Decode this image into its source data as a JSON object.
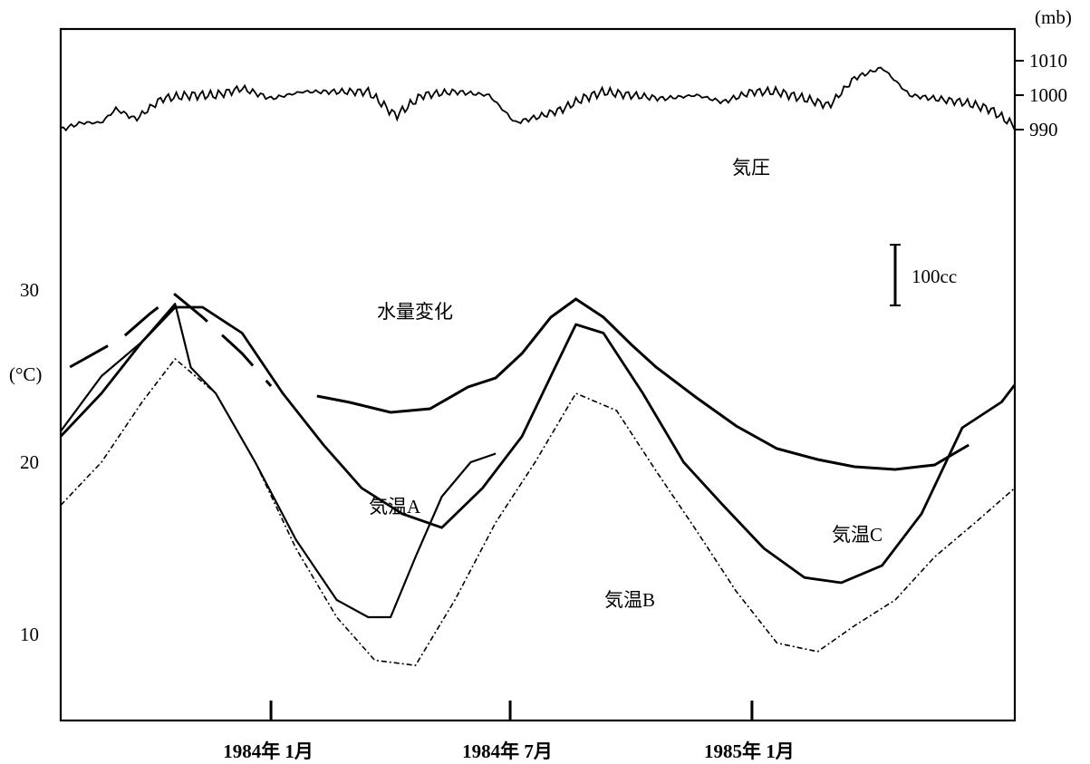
{
  "chart_data": {
    "type": "line",
    "x_axis": {
      "ticks": [
        {
          "date": "1984-01-01",
          "label": "1984年 1月"
        },
        {
          "date": "1984-07-01",
          "label": "1984年 7月"
        },
        {
          "date": "1985-01-01",
          "label": "1985年 1月"
        }
      ],
      "range": [
        "1983-07-25",
        "1985-07-20"
      ]
    },
    "left_axis": {
      "unit_label": "(°C)",
      "ticks": [
        {
          "value": 30,
          "label": "30"
        },
        {
          "value": 20,
          "label": "20"
        },
        {
          "value": 10,
          "label": "10"
        }
      ],
      "range": [
        0,
        30
      ]
    },
    "right_axis": {
      "unit_label": "(mb)",
      "ticks": [
        {
          "value": 1010,
          "label": "1010"
        },
        {
          "value": 1000,
          "label": "1000"
        },
        {
          "value": 990,
          "label": "990"
        }
      ]
    },
    "scale_bar_label": "100cc",
    "series": [
      {
        "name": "気圧",
        "unit": "mb",
        "style": "thin-jagged",
        "x": [
          "1983-07-25",
          "1983-08-10",
          "1983-08-25",
          "1983-09-05",
          "1983-09-20",
          "1983-10-10",
          "1983-11-01",
          "1983-11-20",
          "1983-12-10",
          "1984-01-01",
          "1984-01-25",
          "1984-02-20",
          "1984-03-15",
          "1984-04-05",
          "1984-04-25",
          "1984-05-20",
          "1984-06-15",
          "1984-07-05",
          "1984-07-25",
          "1984-08-10",
          "1984-08-25",
          "1984-09-10",
          "1984-10-01",
          "1984-10-25",
          "1984-11-20",
          "1984-12-10",
          "1985-01-01",
          "1985-01-20",
          "1985-02-10",
          "1985-03-01",
          "1985-03-20",
          "1985-04-10",
          "1985-05-01",
          "1985-05-20",
          "1985-06-10",
          "1985-07-01",
          "1985-07-20"
        ],
        "values": [
          990,
          992,
          992,
          996,
          993,
          999,
          1000,
          1000,
          1002,
          999,
          1001,
          1001,
          1001,
          994,
          1000,
          1001,
          1000,
          992,
          994,
          996,
          999,
          1001,
          1000,
          999,
          1000,
          998,
          1001,
          1001,
          999,
          997,
          1005,
          1008,
          1000,
          999,
          998,
          996,
          991
        ]
      },
      {
        "name": "水量変化",
        "style": "thick-dashed-then-solid",
        "value_note": "relative level (100cc scale bar)",
        "x": [
          "1983-08-01",
          "1983-09-10",
          "1983-10-01",
          "1983-10-20",
          "1983-11-10",
          "1983-12-10",
          "1984-01-01",
          "1984-02-05",
          "1984-03-01",
          "1984-04-01",
          "1984-05-01",
          "1984-05-30",
          "1984-06-20",
          "1984-07-10",
          "1984-08-01",
          "1984-08-20",
          "1984-09-10",
          "1984-10-01",
          "1984-10-20",
          "1984-11-20",
          "1984-12-20",
          "1985-01-20",
          "1985-02-20",
          "1985-03-20",
          "1985-04-20",
          "1985-05-20",
          "1985-06-15"
        ],
        "values": [
          150,
          215,
          268,
          310,
          260,
          180,
          108,
          86,
          72,
          50,
          58,
          106,
          126,
          180,
          260,
          300,
          260,
          200,
          150,
          82,
          20,
          -30,
          -54,
          -70,
          -76,
          -66,
          -22
        ]
      },
      {
        "name": "気温A",
        "unit": "°C",
        "style": "thick-solid",
        "x": [
          "1983-07-25",
          "1983-08-25",
          "1983-09-25",
          "1983-10-20",
          "1983-11-10",
          "1983-12-10",
          "1984-01-10",
          "1984-02-10",
          "1984-03-10",
          "1984-04-10",
          "1984-05-10",
          "1984-06-10",
          "1984-07-10",
          "1984-08-01",
          "1984-08-20",
          "1984-09-10",
          "1984-10-10",
          "1984-11-10",
          "1984-12-10",
          "1985-01-10",
          "1985-02-10",
          "1985-03-10",
          "1985-04-10",
          "1985-05-10",
          "1985-06-10",
          "1985-07-10",
          "1985-07-20"
        ],
        "values": [
          21.5,
          24,
          27,
          29,
          29,
          27.5,
          24,
          21,
          18.5,
          17,
          16.2,
          18.5,
          21.5,
          25,
          28,
          27.5,
          24,
          20,
          17.5,
          15,
          13.3,
          13,
          14,
          17,
          22,
          23.5,
          24.5
        ]
      },
      {
        "name": "気温B",
        "unit": "°C",
        "style": "thin-dash-dot",
        "x": [
          "1983-07-25",
          "1983-08-25",
          "1983-09-25",
          "1983-10-20",
          "1983-11-20",
          "1983-12-20",
          "1984-01-20",
          "1984-02-20",
          "1984-03-20",
          "1984-04-20",
          "1984-05-20",
          "1984-06-20",
          "1984-07-20",
          "1984-08-20",
          "1984-09-20",
          "1984-10-20",
          "1984-11-20",
          "1984-12-20",
          "1985-01-20",
          "1985-02-20",
          "1985-03-20",
          "1985-04-20",
          "1985-05-20",
          "1985-06-20",
          "1985-07-20"
        ],
        "values": [
          17.5,
          20,
          23.5,
          26,
          24,
          20,
          15,
          11,
          8.5,
          8.2,
          12,
          16.5,
          20,
          24,
          23,
          19.5,
          16,
          12.5,
          9.5,
          9,
          10.5,
          12,
          14.5,
          16.5,
          18.5
        ]
      },
      {
        "name": "気温C",
        "unit": "°C",
        "style": "medium-solid",
        "x": [
          "1983-07-25",
          "1983-08-25",
          "1983-09-25",
          "1983-10-20",
          "1983-11-01",
          "1983-11-20",
          "1983-12-20",
          "1984-01-20",
          "1984-02-20",
          "1984-03-15",
          "1984-04-01",
          "1984-04-20",
          "1984-05-10",
          "1984-06-01",
          "1984-06-20"
        ],
        "values": [
          21.8,
          25,
          27,
          29.2,
          25.5,
          24,
          20,
          15.5,
          12,
          11,
          11,
          14.5,
          18,
          20,
          20.5
        ]
      }
    ],
    "annotations": [
      {
        "text": "気圧",
        "near_series": "気圧"
      },
      {
        "text": "水量変化",
        "near_series": "水量変化"
      },
      {
        "text": "気温A",
        "near_series": "気温A"
      },
      {
        "text": "気温B",
        "near_series": "気温B"
      },
      {
        "text": "気温C",
        "near_series": "気温C"
      }
    ],
    "grid": false,
    "legend": "none (direct labels)"
  }
}
